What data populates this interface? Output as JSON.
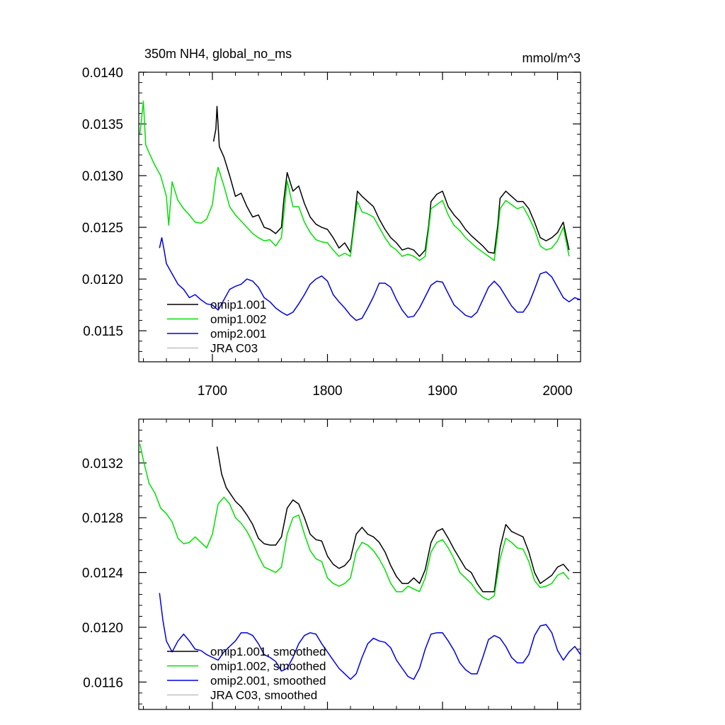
{
  "chart_data": [
    {
      "type": "line",
      "title": "350m NH4, global_no_ms",
      "units": "mmol/m^3",
      "xlim": [
        1636,
        2020
      ],
      "ylim": [
        0.0112,
        0.014
      ],
      "xticks": [
        1700,
        1800,
        1900,
        2000
      ],
      "xtick_labels": [
        "1700",
        "1800",
        "1900",
        "2000"
      ],
      "yticks": [
        0.0115,
        0.012,
        0.0125,
        0.013,
        0.0135,
        0.014
      ],
      "ytick_labels": [
        "0.0115",
        "0.0120",
        "0.0125",
        "0.0130",
        "0.0135",
        "0.0140"
      ],
      "legend_position": "bottom-left",
      "series": [
        {
          "name": "omip1.001",
          "color": "#000000",
          "x": [
            1701,
            1703,
            1704,
            1706,
            1710,
            1715,
            1720,
            1725,
            1730,
            1735,
            1740,
            1745,
            1750,
            1755,
            1760,
            1762,
            1765,
            1770,
            1775,
            1780,
            1785,
            1790,
            1795,
            1800,
            1805,
            1810,
            1815,
            1820,
            1823,
            1826,
            1830,
            1835,
            1840,
            1845,
            1850,
            1855,
            1860,
            1865,
            1870,
            1875,
            1880,
            1885,
            1888,
            1890,
            1895,
            1900,
            1905,
            1910,
            1915,
            1920,
            1925,
            1930,
            1935,
            1940,
            1945,
            1948,
            1950,
            1955,
            1960,
            1965,
            1970,
            1975,
            1980,
            1985,
            1990,
            1995,
            2000,
            2005,
            2010
          ],
          "y": [
            0.01333,
            0.01345,
            0.01367,
            0.01328,
            0.01318,
            0.013,
            0.0128,
            0.01283,
            0.0127,
            0.0126,
            0.01262,
            0.0125,
            0.01248,
            0.01244,
            0.0125,
            0.01276,
            0.01303,
            0.01285,
            0.0129,
            0.01273,
            0.0126,
            0.01253,
            0.0125,
            0.01248,
            0.0124,
            0.0123,
            0.01235,
            0.01226,
            0.01254,
            0.01285,
            0.0128,
            0.01275,
            0.0127,
            0.01258,
            0.01248,
            0.0124,
            0.01235,
            0.01228,
            0.0123,
            0.01228,
            0.01222,
            0.01228,
            0.01252,
            0.01275,
            0.01282,
            0.01285,
            0.0127,
            0.01262,
            0.01256,
            0.01248,
            0.01242,
            0.01237,
            0.01232,
            0.01226,
            0.01225,
            0.01252,
            0.01278,
            0.01285,
            0.0128,
            0.01275,
            0.01275,
            0.01268,
            0.01255,
            0.0124,
            0.01237,
            0.0124,
            0.01245,
            0.01255,
            0.01228
          ]
        },
        {
          "name": "omip1.002",
          "color": "#00e000",
          "x": [
            1637,
            1640,
            1642,
            1645,
            1650,
            1655,
            1660,
            1662,
            1665,
            1670,
            1675,
            1680,
            1685,
            1690,
            1695,
            1700,
            1703,
            1705,
            1710,
            1715,
            1720,
            1725,
            1730,
            1735,
            1740,
            1745,
            1750,
            1755,
            1760,
            1762,
            1765,
            1770,
            1775,
            1780,
            1785,
            1790,
            1795,
            1800,
            1805,
            1810,
            1815,
            1820,
            1823,
            1826,
            1830,
            1835,
            1840,
            1845,
            1850,
            1855,
            1860,
            1865,
            1870,
            1875,
            1880,
            1885,
            1888,
            1890,
            1895,
            1900,
            1905,
            1910,
            1915,
            1920,
            1925,
            1930,
            1935,
            1940,
            1945,
            1948,
            1950,
            1955,
            1960,
            1965,
            1970,
            1975,
            1980,
            1985,
            1990,
            1995,
            2000,
            2005,
            2010
          ],
          "y": [
            0.0134,
            0.01372,
            0.0133,
            0.01322,
            0.0131,
            0.013,
            0.0128,
            0.01252,
            0.01294,
            0.01276,
            0.01268,
            0.01262,
            0.01255,
            0.01254,
            0.01258,
            0.01272,
            0.01298,
            0.01308,
            0.0129,
            0.0127,
            0.01262,
            0.01256,
            0.0125,
            0.01244,
            0.0124,
            0.01237,
            0.01238,
            0.01232,
            0.0124,
            0.01262,
            0.01295,
            0.0127,
            0.0127,
            0.01255,
            0.01245,
            0.01238,
            0.01236,
            0.01235,
            0.01228,
            0.01222,
            0.01225,
            0.01222,
            0.0125,
            0.01275,
            0.01265,
            0.01263,
            0.0126,
            0.0125,
            0.0124,
            0.01232,
            0.01228,
            0.01222,
            0.01224,
            0.01222,
            0.01218,
            0.01222,
            0.01248,
            0.01268,
            0.01272,
            0.01276,
            0.01262,
            0.01252,
            0.01247,
            0.0124,
            0.01235,
            0.0123,
            0.01226,
            0.01222,
            0.01218,
            0.01245,
            0.01268,
            0.01276,
            0.01272,
            0.01268,
            0.0127,
            0.0126,
            0.01248,
            0.01232,
            0.01228,
            0.0123,
            0.01237,
            0.0125,
            0.01222
          ]
        },
        {
          "name": "omip2.001",
          "color": "#0000e0",
          "x": [
            1654,
            1656,
            1658,
            1660,
            1665,
            1670,
            1675,
            1680,
            1685,
            1690,
            1695,
            1700,
            1705,
            1710,
            1715,
            1720,
            1725,
            1730,
            1735,
            1740,
            1745,
            1750,
            1755,
            1760,
            1765,
            1770,
            1775,
            1780,
            1785,
            1790,
            1795,
            1800,
            1805,
            1810,
            1815,
            1820,
            1825,
            1830,
            1835,
            1840,
            1845,
            1850,
            1855,
            1860,
            1865,
            1870,
            1875,
            1880,
            1885,
            1890,
            1895,
            1900,
            1905,
            1910,
            1915,
            1920,
            1925,
            1930,
            1935,
            1940,
            1945,
            1950,
            1955,
            1960,
            1965,
            1970,
            1975,
            1980,
            1985,
            1990,
            1995,
            2000,
            2005,
            2010,
            2015,
            2020
          ],
          "y": [
            0.0123,
            0.0124,
            0.01228,
            0.01215,
            0.01205,
            0.01195,
            0.0119,
            0.01182,
            0.01185,
            0.0118,
            0.01176,
            0.01175,
            0.0117,
            0.0118,
            0.0119,
            0.01193,
            0.01195,
            0.012,
            0.01198,
            0.01192,
            0.01182,
            0.01178,
            0.01172,
            0.01168,
            0.01165,
            0.01168,
            0.01176,
            0.01185,
            0.01195,
            0.012,
            0.01203,
            0.01198,
            0.01185,
            0.01178,
            0.01172,
            0.01165,
            0.0116,
            0.01162,
            0.01172,
            0.01183,
            0.01196,
            0.01196,
            0.01192,
            0.0118,
            0.0117,
            0.01163,
            0.01164,
            0.01172,
            0.01183,
            0.01194,
            0.01198,
            0.01197,
            0.01186,
            0.01175,
            0.0117,
            0.01165,
            0.01163,
            0.01168,
            0.0118,
            0.01192,
            0.01198,
            0.01192,
            0.01183,
            0.01174,
            0.01168,
            0.01168,
            0.01176,
            0.0119,
            0.01205,
            0.01207,
            0.01202,
            0.01192,
            0.01182,
            0.01178,
            0.01182,
            0.0118
          ]
        },
        {
          "name": "JRA C03",
          "color": "#c0c0c0",
          "x": [],
          "y": []
        }
      ]
    },
    {
      "type": "line",
      "xlim": [
        1636,
        2020
      ],
      "ylim": [
        0.0114,
        0.01352
      ],
      "xticks": [
        1700,
        1800,
        1900,
        2000
      ],
      "yticks": [
        0.0116,
        0.012,
        0.0124,
        0.0128,
        0.0132
      ],
      "ytick_labels": [
        "0.0116",
        "0.0120",
        "0.0124",
        "0.0128",
        "0.0132"
      ],
      "legend_position": "bottom-left",
      "series": [
        {
          "name": "omip1.001, smoothed",
          "color": "#000000",
          "x": [
            1704,
            1708,
            1712,
            1716,
            1720,
            1725,
            1730,
            1735,
            1740,
            1745,
            1750,
            1755,
            1760,
            1765,
            1770,
            1775,
            1780,
            1785,
            1790,
            1795,
            1800,
            1805,
            1810,
            1815,
            1820,
            1825,
            1830,
            1835,
            1840,
            1845,
            1850,
            1855,
            1860,
            1865,
            1870,
            1875,
            1880,
            1885,
            1890,
            1895,
            1900,
            1905,
            1910,
            1915,
            1920,
            1925,
            1930,
            1935,
            1940,
            1945,
            1950,
            1955,
            1960,
            1965,
            1970,
            1975,
            1980,
            1985,
            1990,
            1995,
            2000,
            2005,
            2010
          ],
          "y": [
            0.01332,
            0.01312,
            0.01302,
            0.01297,
            0.01292,
            0.01288,
            0.01282,
            0.01275,
            0.01265,
            0.01261,
            0.0126,
            0.0126,
            0.01266,
            0.01287,
            0.01293,
            0.0129,
            0.0128,
            0.01268,
            0.01264,
            0.01263,
            0.01252,
            0.01246,
            0.01243,
            0.01245,
            0.0125,
            0.01268,
            0.01273,
            0.01268,
            0.01266,
            0.01262,
            0.01255,
            0.01245,
            0.01237,
            0.01232,
            0.01232,
            0.01236,
            0.01232,
            0.01242,
            0.01262,
            0.0127,
            0.01272,
            0.01265,
            0.01257,
            0.0125,
            0.01243,
            0.0124,
            0.01232,
            0.01226,
            0.01226,
            0.01226,
            0.01258,
            0.01275,
            0.0127,
            0.01268,
            0.01266,
            0.01255,
            0.0124,
            0.01232,
            0.01235,
            0.01238,
            0.01244,
            0.01246,
            0.01241
          ]
        },
        {
          "name": "omip1.002, smoothed",
          "color": "#00e000",
          "x": [
            1637,
            1640,
            1645,
            1650,
            1655,
            1660,
            1665,
            1670,
            1675,
            1680,
            1685,
            1690,
            1695,
            1700,
            1705,
            1710,
            1715,
            1720,
            1725,
            1730,
            1735,
            1740,
            1745,
            1750,
            1755,
            1760,
            1765,
            1770,
            1775,
            1780,
            1785,
            1790,
            1795,
            1800,
            1805,
            1810,
            1815,
            1820,
            1825,
            1830,
            1835,
            1840,
            1845,
            1850,
            1855,
            1860,
            1865,
            1870,
            1875,
            1880,
            1885,
            1890,
            1895,
            1900,
            1905,
            1910,
            1915,
            1920,
            1925,
            1930,
            1935,
            1940,
            1945,
            1950,
            1955,
            1960,
            1965,
            1970,
            1975,
            1980,
            1985,
            1990,
            1995,
            2000,
            2005,
            2010
          ],
          "y": [
            0.01334,
            0.01322,
            0.01305,
            0.01298,
            0.01287,
            0.01283,
            0.01277,
            0.01265,
            0.01261,
            0.01262,
            0.01266,
            0.01262,
            0.01258,
            0.01268,
            0.0129,
            0.01295,
            0.0129,
            0.0128,
            0.01276,
            0.0127,
            0.01262,
            0.01252,
            0.01244,
            0.01242,
            0.0124,
            0.01244,
            0.01268,
            0.0128,
            0.01282,
            0.01268,
            0.01256,
            0.0125,
            0.01248,
            0.01236,
            0.01232,
            0.0123,
            0.01232,
            0.01236,
            0.01255,
            0.01262,
            0.0126,
            0.01256,
            0.0125,
            0.01242,
            0.01232,
            0.01226,
            0.01226,
            0.0123,
            0.01228,
            0.01226,
            0.01236,
            0.01255,
            0.01262,
            0.01264,
            0.01258,
            0.0125,
            0.0124,
            0.01236,
            0.01232,
            0.01226,
            0.01222,
            0.0122,
            0.01223,
            0.0125,
            0.01265,
            0.01262,
            0.01258,
            0.01257,
            0.01248,
            0.01234,
            0.01229,
            0.0123,
            0.01232,
            0.01238,
            0.0124,
            0.01235
          ]
        },
        {
          "name": "omip2.001, smoothed",
          "color": "#0000e0",
          "x": [
            1654,
            1657,
            1660,
            1665,
            1670,
            1675,
            1680,
            1685,
            1690,
            1695,
            1700,
            1705,
            1710,
            1715,
            1720,
            1725,
            1730,
            1735,
            1740,
            1745,
            1750,
            1755,
            1760,
            1765,
            1770,
            1775,
            1780,
            1785,
            1790,
            1795,
            1800,
            1805,
            1810,
            1815,
            1820,
            1825,
            1830,
            1835,
            1840,
            1845,
            1850,
            1855,
            1860,
            1865,
            1870,
            1875,
            1880,
            1885,
            1890,
            1895,
            1900,
            1905,
            1910,
            1915,
            1920,
            1925,
            1930,
            1935,
            1940,
            1945,
            1950,
            1955,
            1960,
            1965,
            1970,
            1975,
            1980,
            1985,
            1990,
            1995,
            2000,
            2005,
            2010,
            2015,
            2020
          ],
          "y": [
            0.01225,
            0.01205,
            0.0119,
            0.01182,
            0.0119,
            0.01195,
            0.0119,
            0.01184,
            0.01183,
            0.0118,
            0.01178,
            0.01176,
            0.01182,
            0.01186,
            0.0119,
            0.01196,
            0.01196,
            0.01194,
            0.01188,
            0.0118,
            0.01178,
            0.01175,
            0.01168,
            0.0117,
            0.01178,
            0.01188,
            0.01194,
            0.01196,
            0.01195,
            0.01188,
            0.01182,
            0.01176,
            0.0117,
            0.01166,
            0.01162,
            0.01166,
            0.01178,
            0.01188,
            0.01192,
            0.0119,
            0.01189,
            0.01185,
            0.01176,
            0.0117,
            0.01164,
            0.01162,
            0.0117,
            0.01184,
            0.01195,
            0.01196,
            0.01196,
            0.0119,
            0.01183,
            0.01174,
            0.01169,
            0.01166,
            0.01166,
            0.01178,
            0.01191,
            0.01194,
            0.01192,
            0.01186,
            0.01178,
            0.01174,
            0.01174,
            0.0118,
            0.01194,
            0.01201,
            0.01202,
            0.01196,
            0.01183,
            0.01176,
            0.01182,
            0.01186,
            0.0118
          ]
        },
        {
          "name": "JRA C03, smoothed",
          "color": "#c0c0c0",
          "x": [],
          "y": []
        }
      ]
    }
  ]
}
